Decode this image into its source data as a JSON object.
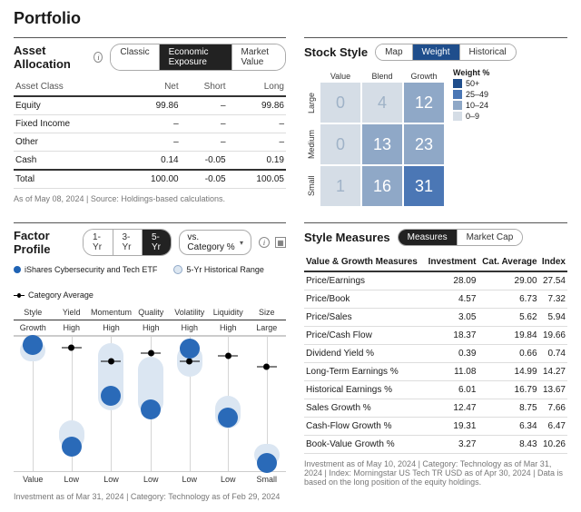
{
  "title": "Portfolio",
  "asset_allocation": {
    "heading": "Asset Allocation",
    "tabs": [
      "Classic",
      "Economic Exposure",
      "Market Value"
    ],
    "active_tab": 1,
    "columns": [
      "Asset Class",
      "Net",
      "Short",
      "Long"
    ],
    "rows": [
      {
        "label": "Equity",
        "net": "99.86",
        "short": "–",
        "long": "99.86"
      },
      {
        "label": "Fixed Income",
        "net": "–",
        "short": "–",
        "long": "–"
      },
      {
        "label": "Other",
        "net": "–",
        "short": "–",
        "long": "–"
      },
      {
        "label": "Cash",
        "net": "0.14",
        "short": "-0.05",
        "long": "0.19"
      }
    ],
    "total": {
      "label": "Total",
      "net": "100.00",
      "short": "-0.05",
      "long": "100.05"
    },
    "footnote": "As of May 08, 2024 | Source: Holdings-based calculations."
  },
  "stock_style": {
    "heading": "Stock Style",
    "tabs": [
      "Map",
      "Weight",
      "Historical"
    ],
    "active_tab": 1,
    "col_headers": [
      "Value",
      "Blend",
      "Growth"
    ],
    "row_headers": [
      "Large",
      "Medium",
      "Small"
    ],
    "cells": [
      [
        0,
        4,
        12
      ],
      [
        0,
        13,
        23
      ],
      [
        1,
        16,
        31
      ]
    ],
    "legend_title": "Weight %",
    "legend": [
      {
        "label": "50+",
        "color": "#1f4e8c"
      },
      {
        "label": "25–49",
        "color": "#4b77b5"
      },
      {
        "label": "10–24",
        "color": "#8fa8c7"
      },
      {
        "label": "0–9",
        "color": "#d5dde6"
      }
    ],
    "colors": {
      "50": "#1f4e8c",
      "25": "#4b77b5",
      "10": "#8fa8c7",
      "0": "#d5dde6"
    }
  },
  "factor_profile": {
    "heading": "Factor Profile",
    "range_tabs": [
      "1-Yr",
      "3-Yr",
      "5-Yr"
    ],
    "range_active": 2,
    "compare_label": "vs. Category %",
    "legend": {
      "fund": "iShares Cybersecurity and Tech ETF",
      "range": "5-Yr Historical Range",
      "category": "Category Average"
    },
    "factors": [
      {
        "name": "Style",
        "top": "Growth",
        "bottom": "Value",
        "range": [
          2,
          18
        ],
        "current": 6,
        "cat": 7
      },
      {
        "name": "Yield",
        "top": "High",
        "bottom": "Low",
        "range": [
          62,
          84
        ],
        "current": 82,
        "cat": 8
      },
      {
        "name": "Momentum",
        "top": "High",
        "bottom": "Low",
        "range": [
          5,
          55
        ],
        "current": 44,
        "cat": 18
      },
      {
        "name": "Quality",
        "top": "High",
        "bottom": "Low",
        "range": [
          15,
          58
        ],
        "current": 54,
        "cat": 12
      },
      {
        "name": "Volatility",
        "top": "High",
        "bottom": "Low",
        "range": [
          6,
          30
        ],
        "current": 9,
        "cat": 18
      },
      {
        "name": "Liquidity",
        "top": "High",
        "bottom": "Low",
        "range": [
          44,
          68
        ],
        "current": 60,
        "cat": 14
      },
      {
        "name": "Size",
        "top": "Large",
        "bottom": "Small",
        "range": [
          80,
          96
        ],
        "current": 94,
        "cat": 22
      }
    ],
    "footnote": "Investment as of Mar 31, 2024 | Category: Technology as of Feb 29, 2024"
  },
  "style_measures": {
    "heading": "Style Measures",
    "tabs": [
      "Measures",
      "Market Cap"
    ],
    "active_tab": 0,
    "columns": [
      "Value & Growth Measures",
      "Investment",
      "Cat. Average",
      "Index"
    ],
    "rows": [
      {
        "m": "Price/Earnings",
        "i": "28.09",
        "c": "29.00",
        "x": "27.54"
      },
      {
        "m": "Price/Book",
        "i": "4.57",
        "c": "6.73",
        "x": "7.32"
      },
      {
        "m": "Price/Sales",
        "i": "3.05",
        "c": "5.62",
        "x": "5.94"
      },
      {
        "m": "Price/Cash Flow",
        "i": "18.37",
        "c": "19.84",
        "x": "19.66"
      },
      {
        "m": "Dividend Yield %",
        "i": "0.39",
        "c": "0.66",
        "x": "0.74"
      },
      {
        "m": "Long-Term Earnings %",
        "i": "11.08",
        "c": "14.99",
        "x": "14.27"
      },
      {
        "m": "Historical Earnings %",
        "i": "6.01",
        "c": "16.79",
        "x": "13.67"
      },
      {
        "m": "Sales Growth %",
        "i": "12.47",
        "c": "8.75",
        "x": "7.66"
      },
      {
        "m": "Cash-Flow Growth %",
        "i": "19.31",
        "c": "6.34",
        "x": "6.47"
      },
      {
        "m": "Book-Value Growth %",
        "i": "3.27",
        "c": "8.43",
        "x": "10.26"
      }
    ],
    "footnote": "Investment as of May 10, 2024 | Category: Technology as of Mar 31, 2024 | Index: Morningstar US Tech TR USD as of Apr 30, 2024 | Data is based on the long position of the equity holdings."
  }
}
